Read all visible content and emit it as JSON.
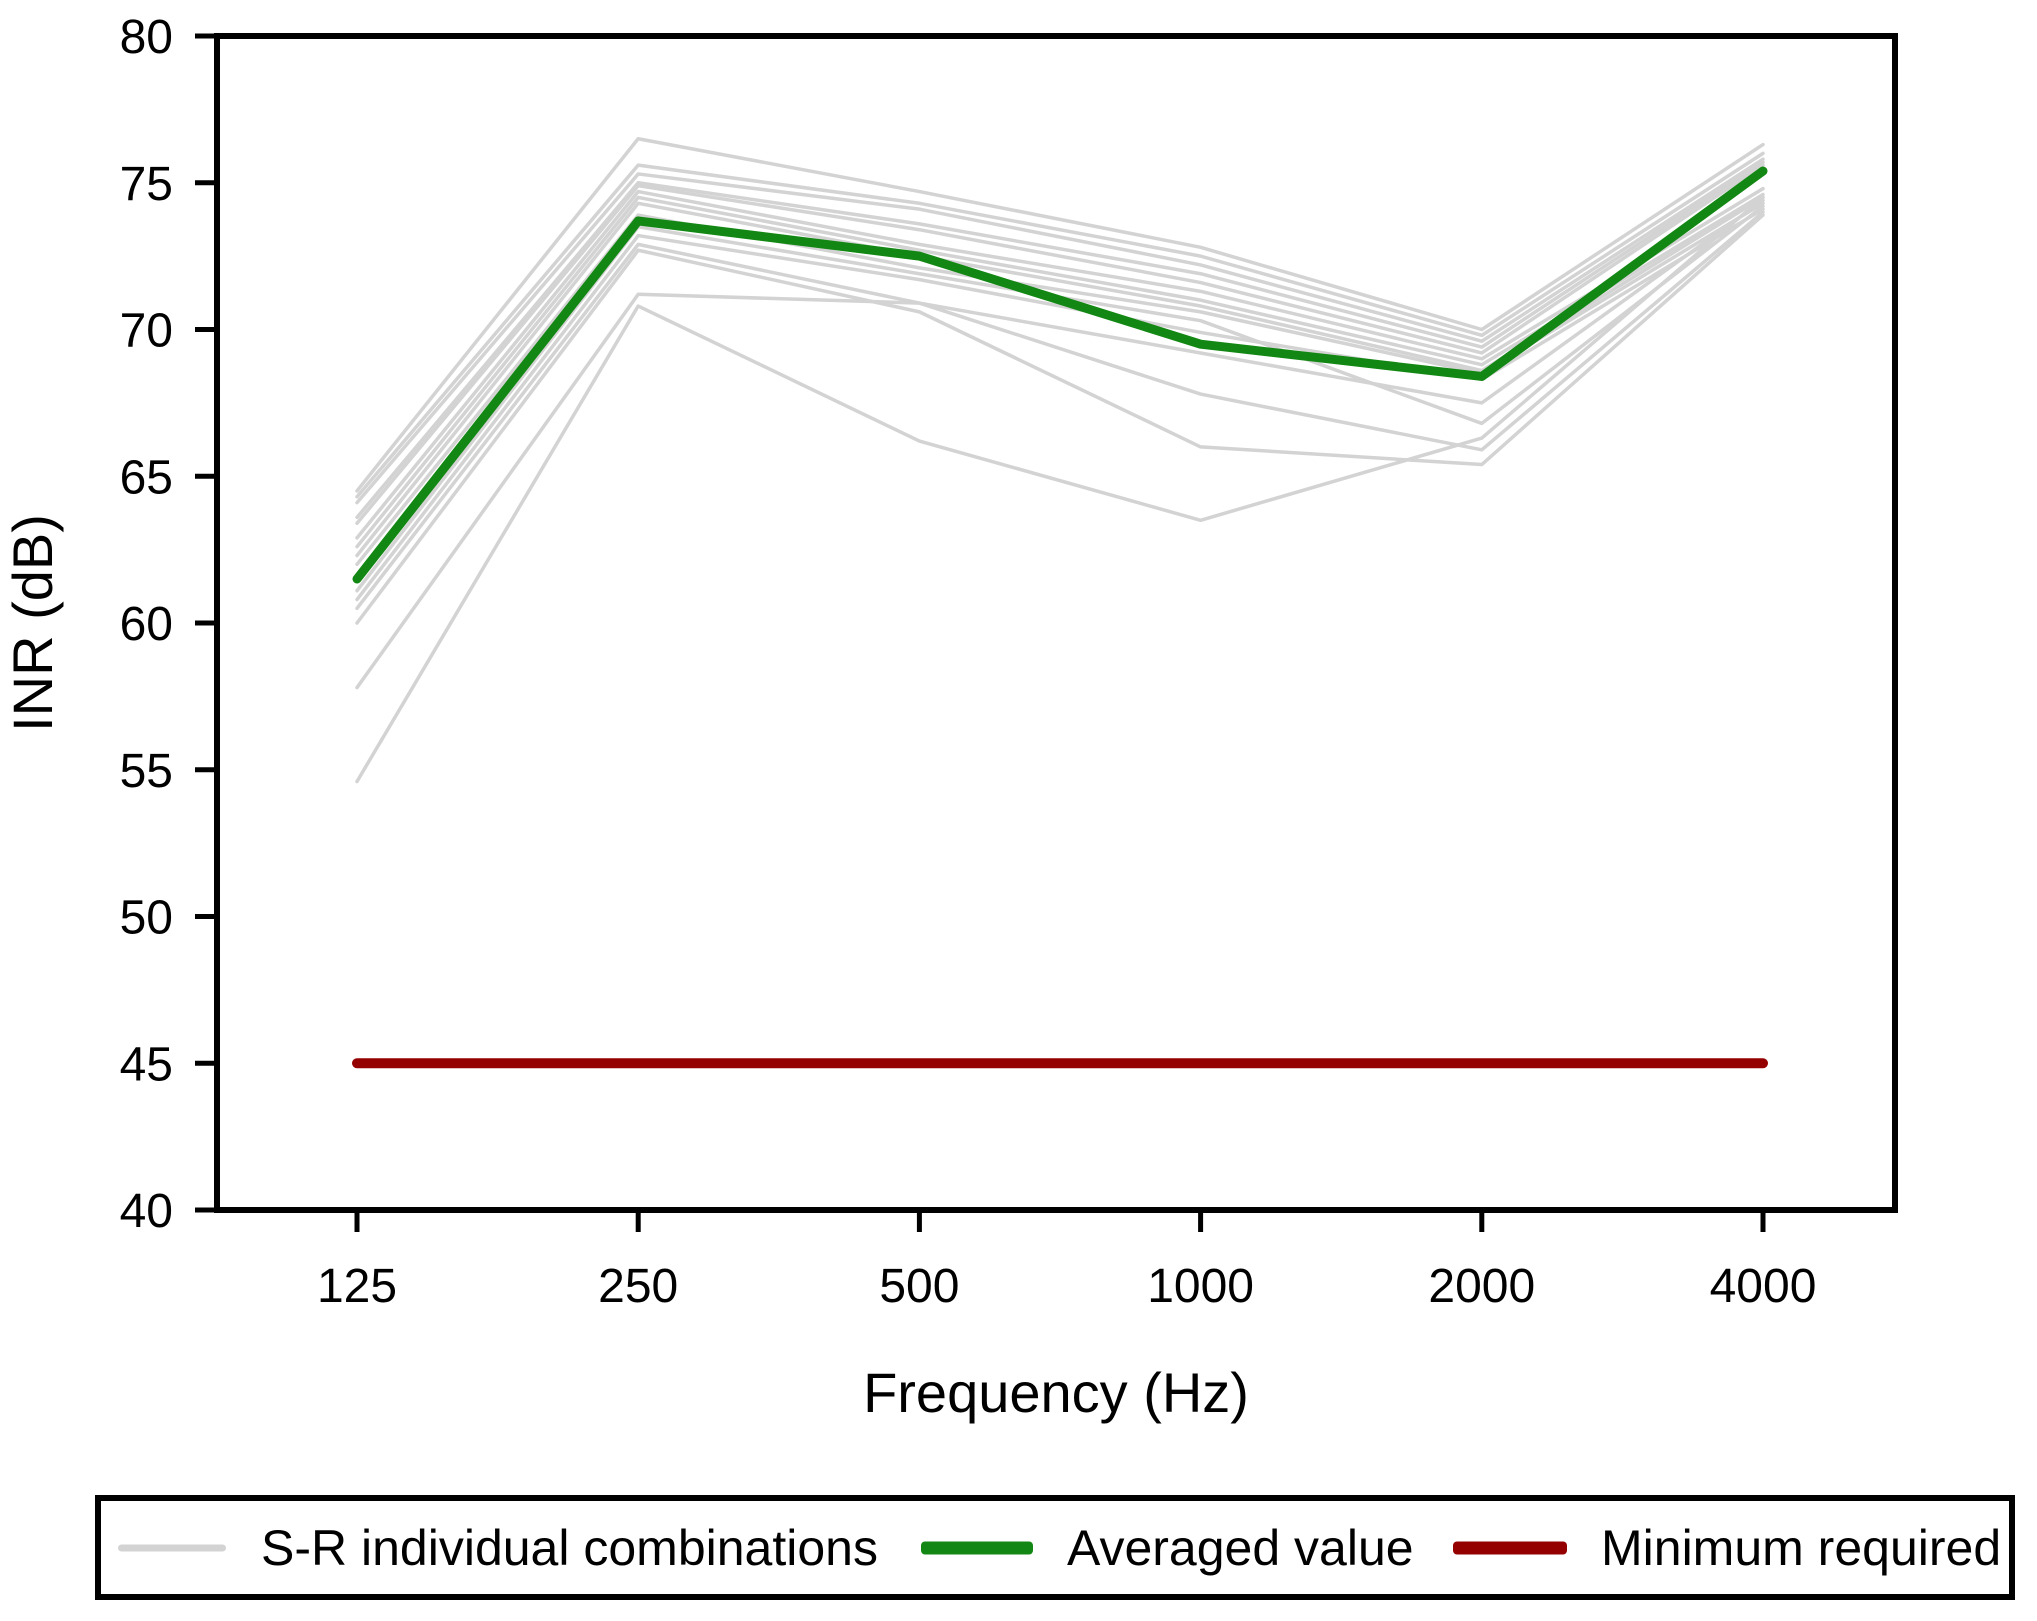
{
  "chart_data": {
    "type": "line",
    "title": "",
    "x_categories": [
      "125",
      "250",
      "500",
      "1000",
      "2000",
      "4000"
    ],
    "xlabel": "Frequency (Hz)",
    "ylabel": "INR (dB)",
    "ylim": [
      40,
      80
    ],
    "yticks": [
      40,
      45,
      50,
      55,
      60,
      65,
      70,
      75,
      80
    ],
    "x_scale": "octave-bands-equal-spacing",
    "grid": false,
    "legend_position": "bottom",
    "series": [
      {
        "name": "S-R individual combinations",
        "role": "individual",
        "color": "#d3d3d3",
        "width": 3.5,
        "lines": [
          [
            64.5,
            76.5,
            74.7,
            72.8,
            70.0,
            76.3
          ],
          [
            64.3,
            75.6,
            74.3,
            72.5,
            69.8,
            76.0
          ],
          [
            64.1,
            75.3,
            74.1,
            72.2,
            69.6,
            75.8
          ],
          [
            63.6,
            75.0,
            73.6,
            71.9,
            69.4,
            75.7
          ],
          [
            63.4,
            74.9,
            73.4,
            71.6,
            69.2,
            75.6
          ],
          [
            62.9,
            74.7,
            72.9,
            71.3,
            69.0,
            74.8
          ],
          [
            62.6,
            74.5,
            72.7,
            71.0,
            68.8,
            74.6
          ],
          [
            62.3,
            74.3,
            72.5,
            70.8,
            68.6,
            74.5
          ],
          [
            62.0,
            73.9,
            72.1,
            70.6,
            68.5,
            74.3
          ],
          [
            61.1,
            73.5,
            71.9,
            70.3,
            66.8,
            74.2
          ],
          [
            60.8,
            73.2,
            71.7,
            69.9,
            68.3,
            74.1
          ],
          [
            60.5,
            72.9,
            70.9,
            67.8,
            65.9,
            74.0
          ],
          [
            60.0,
            72.7,
            70.6,
            66.0,
            65.4,
            73.9
          ],
          [
            57.8,
            71.2,
            70.9,
            69.2,
            67.5,
            74.4
          ],
          [
            54.6,
            70.8,
            66.2,
            63.5,
            66.3,
            74.5
          ]
        ]
      },
      {
        "name": "Averaged value",
        "role": "averaged",
        "color": "#138713",
        "width": 9,
        "values": [
          61.5,
          73.7,
          72.5,
          69.5,
          68.4,
          75.4
        ]
      },
      {
        "name": "Minimum required",
        "role": "minimum",
        "color": "#940000",
        "width": 10,
        "values": [
          45,
          45,
          45,
          45,
          45,
          45
        ]
      }
    ]
  },
  "colors": {
    "axis": "#000000",
    "background": "#ffffff",
    "individual": "#d3d3d3",
    "averaged": "#138713",
    "minimum": "#940000"
  }
}
